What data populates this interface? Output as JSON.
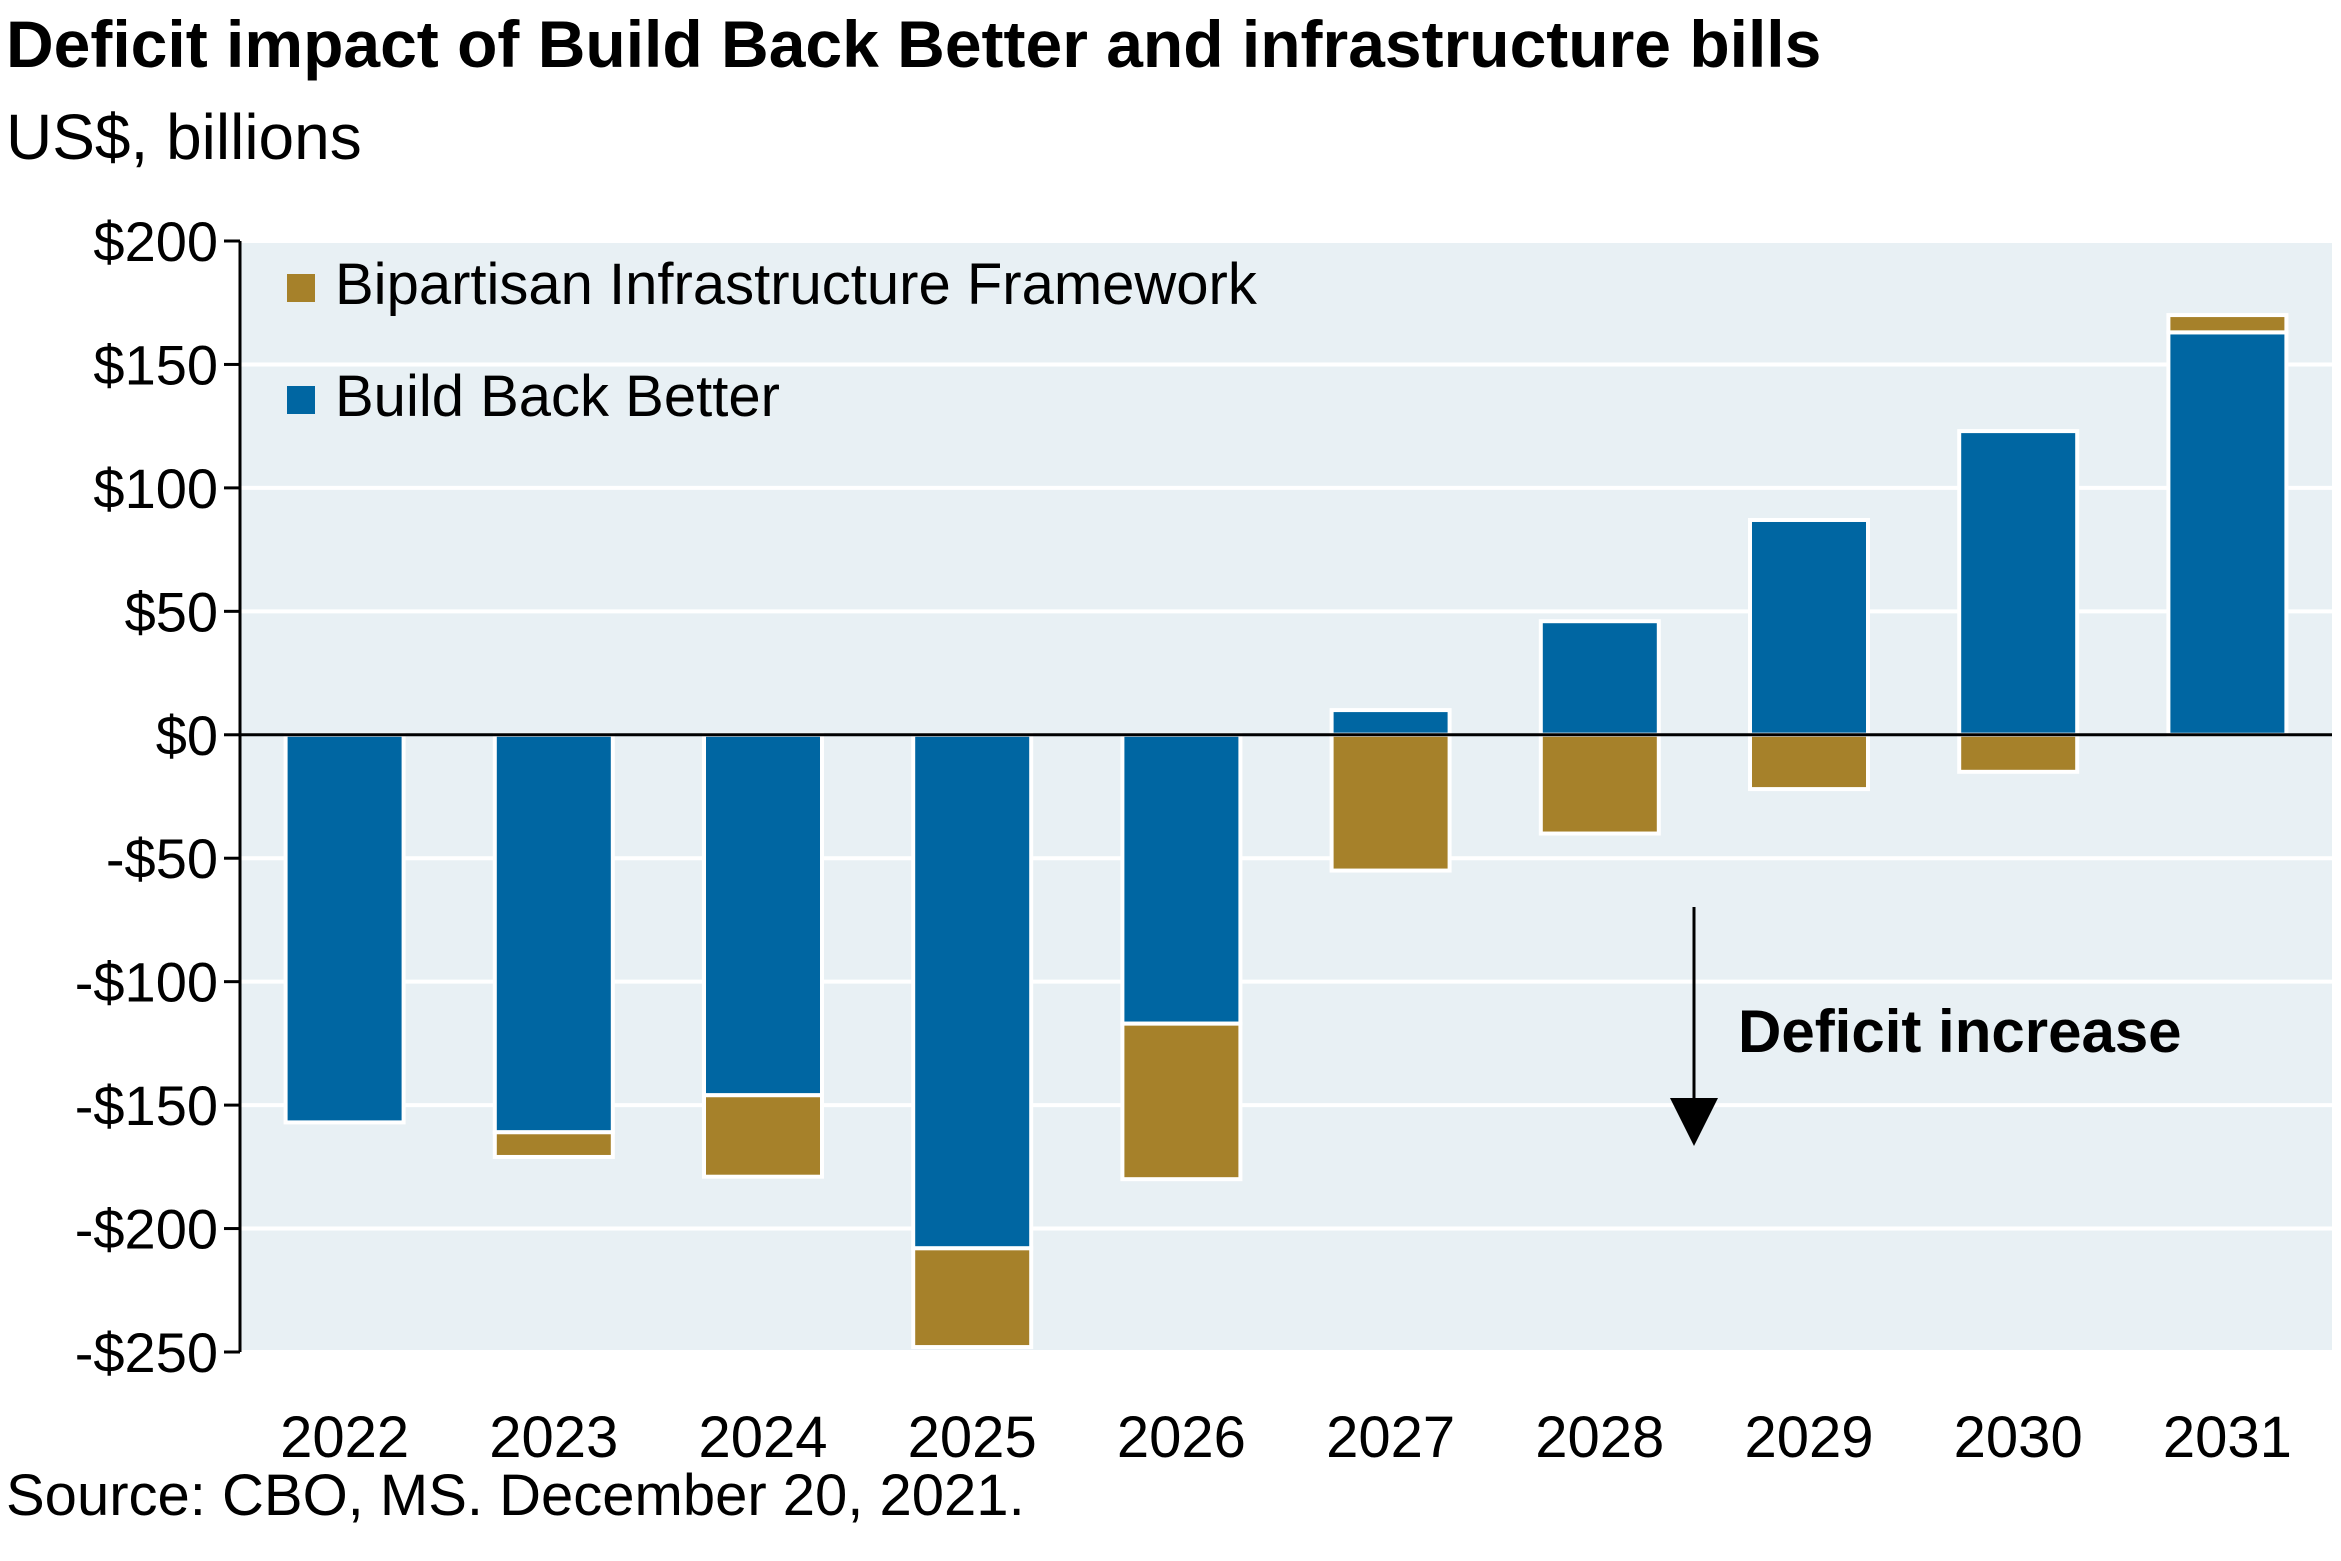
{
  "chart_data": {
    "type": "bar",
    "stacked": true,
    "title": "Deficit impact of Build Back Better and infrastructure bills",
    "subtitle": "US$, billions",
    "source": "Source: CBO, MS. December 20, 2021.",
    "categories": [
      "2022",
      "2023",
      "2024",
      "2025",
      "2026",
      "2027",
      "2028",
      "2029",
      "2030",
      "2031"
    ],
    "series": [
      {
        "name": "Build Back Better",
        "color": "#0066a2",
        "values": [
          -157,
          -161,
          -146,
          -208,
          -117,
          10,
          46,
          87,
          123,
          163
        ]
      },
      {
        "name": "Bipartisan Infrastructure Framework",
        "color": "#a6812a",
        "values": [
          0,
          -10,
          -33,
          -40,
          -63,
          -55,
          -40,
          -22,
          -15,
          7
        ]
      }
    ],
    "legend_order": [
      "Bipartisan Infrastructure Framework",
      "Build Back Better"
    ],
    "ylim": [
      -250,
      200
    ],
    "yticks": [
      200,
      150,
      100,
      50,
      0,
      -50,
      -100,
      -150,
      -200,
      -250
    ],
    "ytick_labels": [
      "$200",
      "$150",
      "$100",
      "$50",
      "$0",
      "-$50",
      "-$100",
      "-$150",
      "-$200",
      "-$250"
    ],
    "grid": true,
    "legend_position": "top-left",
    "annotation": {
      "text": "Deficit increase",
      "icon": "down-arrow-icon"
    },
    "plot_background": "#e8f0f4"
  }
}
